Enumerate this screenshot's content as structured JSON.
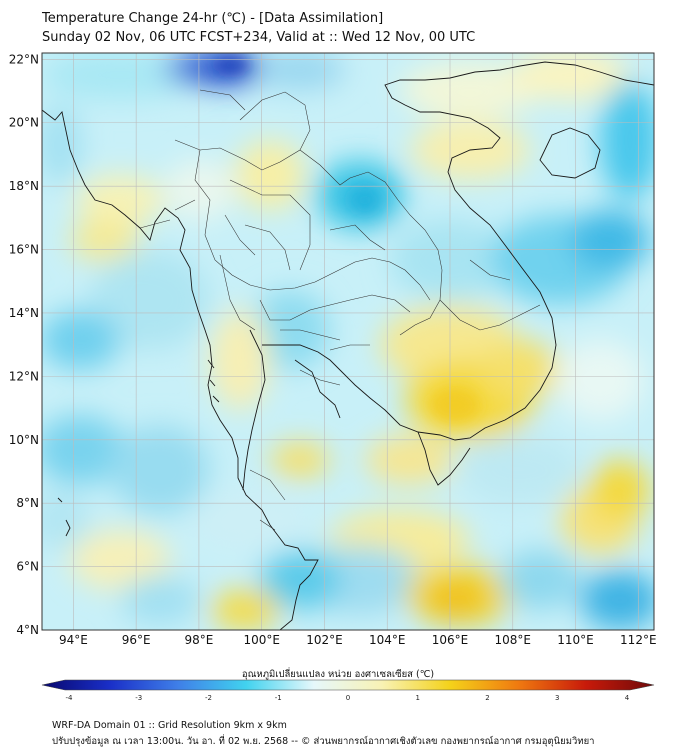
{
  "title": "Temperature Change 24-hr (℃) - [Data Assimilation]",
  "subtitle": "Sunday 02 Nov, 06 UTC FCST+234, Valid at :: Wed 12 Nov, 00 UTC",
  "map": {
    "lon_ticks": [
      "94°E",
      "96°E",
      "98°E",
      "100°E",
      "102°E",
      "104°E",
      "106°E",
      "108°E",
      "110°E",
      "112°E"
    ],
    "lat_ticks": [
      "22°N",
      "20°N",
      "18°N",
      "16°N",
      "14°N",
      "12°N",
      "10°N",
      "8°N",
      "6°N",
      "4°N"
    ],
    "lon_values": [
      94,
      96,
      98,
      100,
      102,
      104,
      106,
      108,
      110,
      112
    ],
    "lat_values": [
      22,
      20,
      18,
      16,
      14,
      12,
      10,
      8,
      6,
      4
    ],
    "lon_range": [
      93,
      112.5
    ],
    "lat_range": [
      4,
      22.2
    ]
  },
  "colorbar": {
    "label": "อุณหภูมิเปลี่ยนแปลง หน่วย องศาเซลเซียส (℃)",
    "ticks": [
      "-4",
      "-3",
      "-2",
      "-1",
      "0",
      "1",
      "2",
      "3",
      "4"
    ],
    "tick_values": [
      -4,
      -3,
      -2,
      -1,
      0,
      1,
      2,
      3,
      4
    ],
    "colors": [
      "#08086e",
      "#1a2fc8",
      "#3f7fe8",
      "#41d2ef",
      "#e6f8fb",
      "#f8f2b4",
      "#f4d21a",
      "#f07a10",
      "#c81a0a",
      "#6e0a0a"
    ]
  },
  "footer": {
    "line1": "WRF-DA Domain 01 :: Grid Resolution 9km x 9km",
    "line2": "ปรับปรุงข้อมูล ณ เวลา 13:00น. วัน อา. ที่ 02 พ.ย. 2568 -- © ส่วนพยากรณ์อากาศเชิงตัวเลข กองพยากรณ์อากาศ กรมอุตุนิยมวิทยา"
  }
}
